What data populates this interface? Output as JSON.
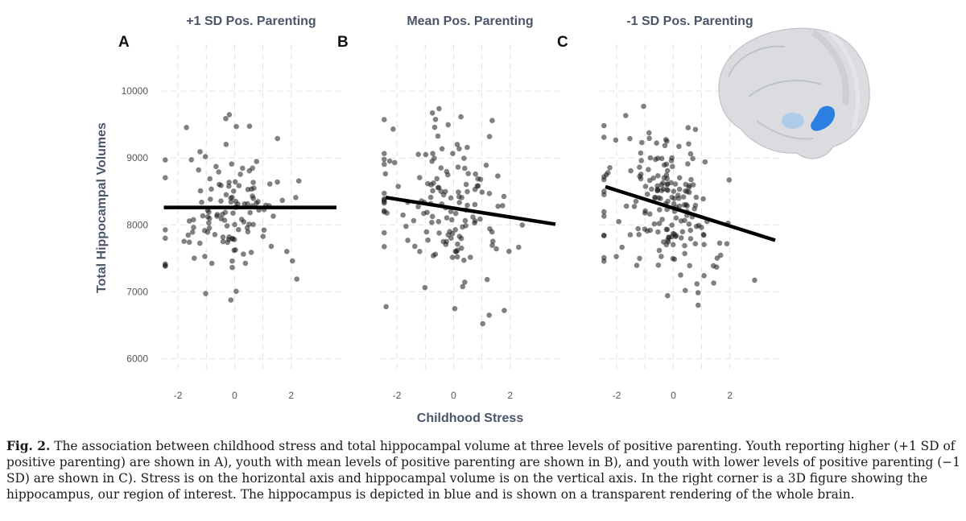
{
  "chart_data": {
    "type": "scatter",
    "y_axis": {
      "label": "Total Hippocampal Volumes",
      "ticks": [
        6000,
        7000,
        8000,
        9000,
        10000
      ],
      "tick_labels": [
        "6000",
        "7000",
        "8000",
        "9000",
        "10000"
      ],
      "ylim": [
        5800,
        10700
      ]
    },
    "x_axis": {
      "label": "Childhood Stress",
      "ticks": [
        -2,
        0,
        2
      ],
      "tick_labels": [
        "-2",
        "0",
        "2"
      ],
      "xlim": [
        -2.6,
        3.8
      ]
    },
    "panels": [
      {
        "letter": "A",
        "title": "+1 SD Pos. Parenting",
        "regression": {
          "x": [
            -2.5,
            3.6
          ],
          "y": [
            8260,
            8260
          ]
        },
        "seed": 11,
        "n": 130,
        "slope": 0,
        "intercept": 8260
      },
      {
        "letter": "B",
        "title": "Mean Pos. Parenting",
        "regression": {
          "x": [
            -2.4,
            3.6
          ],
          "y": [
            8410,
            8010
          ]
        },
        "seed": 23,
        "n": 150,
        "slope": -66.7,
        "intercept": 8250
      },
      {
        "letter": "C",
        "title": "-1 SD Pos. Parenting",
        "regression": {
          "x": [
            -2.4,
            3.6
          ],
          "y": [
            8570,
            7770
          ]
        },
        "seed": 37,
        "n": 190,
        "slope": -133.3,
        "intercept": 8250
      }
    ]
  },
  "caption": {
    "label": "Fig. 2.",
    "text": "The association between childhood stress and total hippocampal volume at three levels of positive parenting. Youth reporting higher (+1 SD of positive parenting) are shown in A), youth with mean levels of positive parenting are shown in B), and youth with lower levels of positive parenting (−1 SD) are shown in C). Stress is on the horizontal axis and hippocampal volume is on the vertical axis. In the right corner is a 3D figure showing the hippocampus, our region of interest. The hippocampus is depicted in blue and is shown on a transparent rendering of the whole brain."
  },
  "colors": {
    "hippocampus": "#2b7fe0",
    "brain": "#d4d6da",
    "points": "#1a1a1a",
    "titles": "#4a5568"
  }
}
